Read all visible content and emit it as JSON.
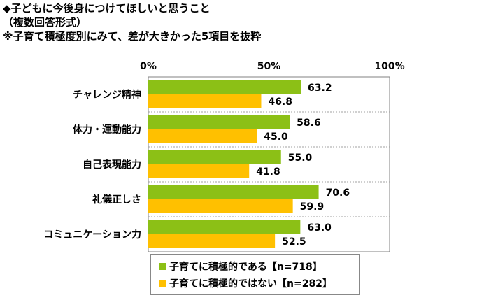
{
  "titles": [
    "◆子どもに今後身につけてほしいと思うこと",
    "（複数回答形式）",
    "※子育て積極度別にみて、差が大きかった5項目を抜粋"
  ],
  "chart_data": {
    "type": "bar",
    "orientation": "horizontal",
    "categories": [
      "チャレンジ精神",
      "体力・運動能力",
      "自己表現能力",
      "礼儀正しさ",
      "コミュニケーション力"
    ],
    "series": [
      {
        "name": "子育てに積極的である【n=718】",
        "values": [
          63.2,
          58.6,
          55.0,
          70.6,
          63.0
        ],
        "labels": [
          "63.2",
          "58.6",
          "55.0",
          "70.6",
          "63.0"
        ],
        "color": "#8CC016"
      },
      {
        "name": "子育てに積極的ではない【n=282】",
        "values": [
          46.8,
          45.0,
          41.8,
          59.9,
          52.5
        ],
        "labels": [
          "46.8",
          "45.0",
          "41.8",
          "59.9",
          "52.5"
        ],
        "color": "#FFC000"
      }
    ],
    "xlim": [
      0,
      100
    ],
    "tick_values": [
      0,
      50,
      100
    ],
    "tick_labels": [
      "0%",
      "50%",
      "100%"
    ],
    "legend_position": "bottom",
    "grid": false
  }
}
